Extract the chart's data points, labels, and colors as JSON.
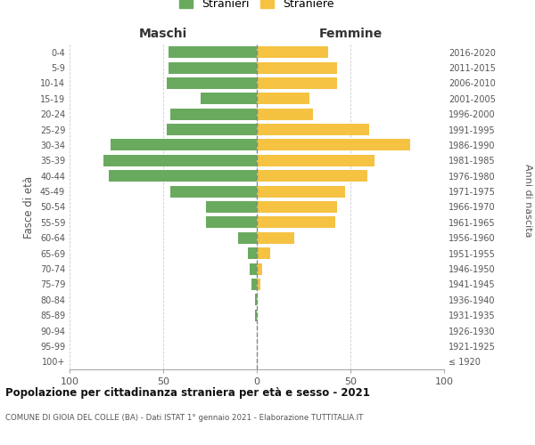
{
  "age_groups": [
    "100+",
    "95-99",
    "90-94",
    "85-89",
    "80-84",
    "75-79",
    "70-74",
    "65-69",
    "60-64",
    "55-59",
    "50-54",
    "45-49",
    "40-44",
    "35-39",
    "30-34",
    "25-29",
    "20-24",
    "15-19",
    "10-14",
    "5-9",
    "0-4"
  ],
  "birth_years": [
    "≤ 1920",
    "1921-1925",
    "1926-1930",
    "1931-1935",
    "1936-1940",
    "1941-1945",
    "1946-1950",
    "1951-1955",
    "1956-1960",
    "1961-1965",
    "1966-1970",
    "1971-1975",
    "1976-1980",
    "1981-1985",
    "1986-1990",
    "1991-1995",
    "1996-2000",
    "2001-2005",
    "2006-2010",
    "2011-2015",
    "2016-2020"
  ],
  "maschi": [
    0,
    0,
    0,
    1,
    1,
    3,
    4,
    5,
    10,
    27,
    27,
    46,
    79,
    82,
    78,
    48,
    46,
    30,
    48,
    47,
    47
  ],
  "femmine": [
    0,
    0,
    0,
    0,
    0,
    2,
    3,
    7,
    20,
    42,
    43,
    47,
    59,
    63,
    82,
    60,
    30,
    28,
    43,
    43,
    38
  ],
  "color_maschi": "#6aaa5e",
  "color_femmine": "#f5c242",
  "color_center_line": "#888888",
  "title": "Popolazione per cittadinanza straniera per età e sesso - 2021",
  "subtitle": "COMUNE DI GIOIA DEL COLLE (BA) - Dati ISTAT 1° gennaio 2021 - Elaborazione TUTTITALIA.IT",
  "ylabel_left": "Fasce di età",
  "ylabel_right": "Anni di nascita",
  "xlabel_left": "Maschi",
  "xlabel_right": "Femmine",
  "legend_maschi": "Stranieri",
  "legend_femmine": "Straniere",
  "xlim": 100,
  "background_color": "#ffffff",
  "grid_color": "#cccccc"
}
